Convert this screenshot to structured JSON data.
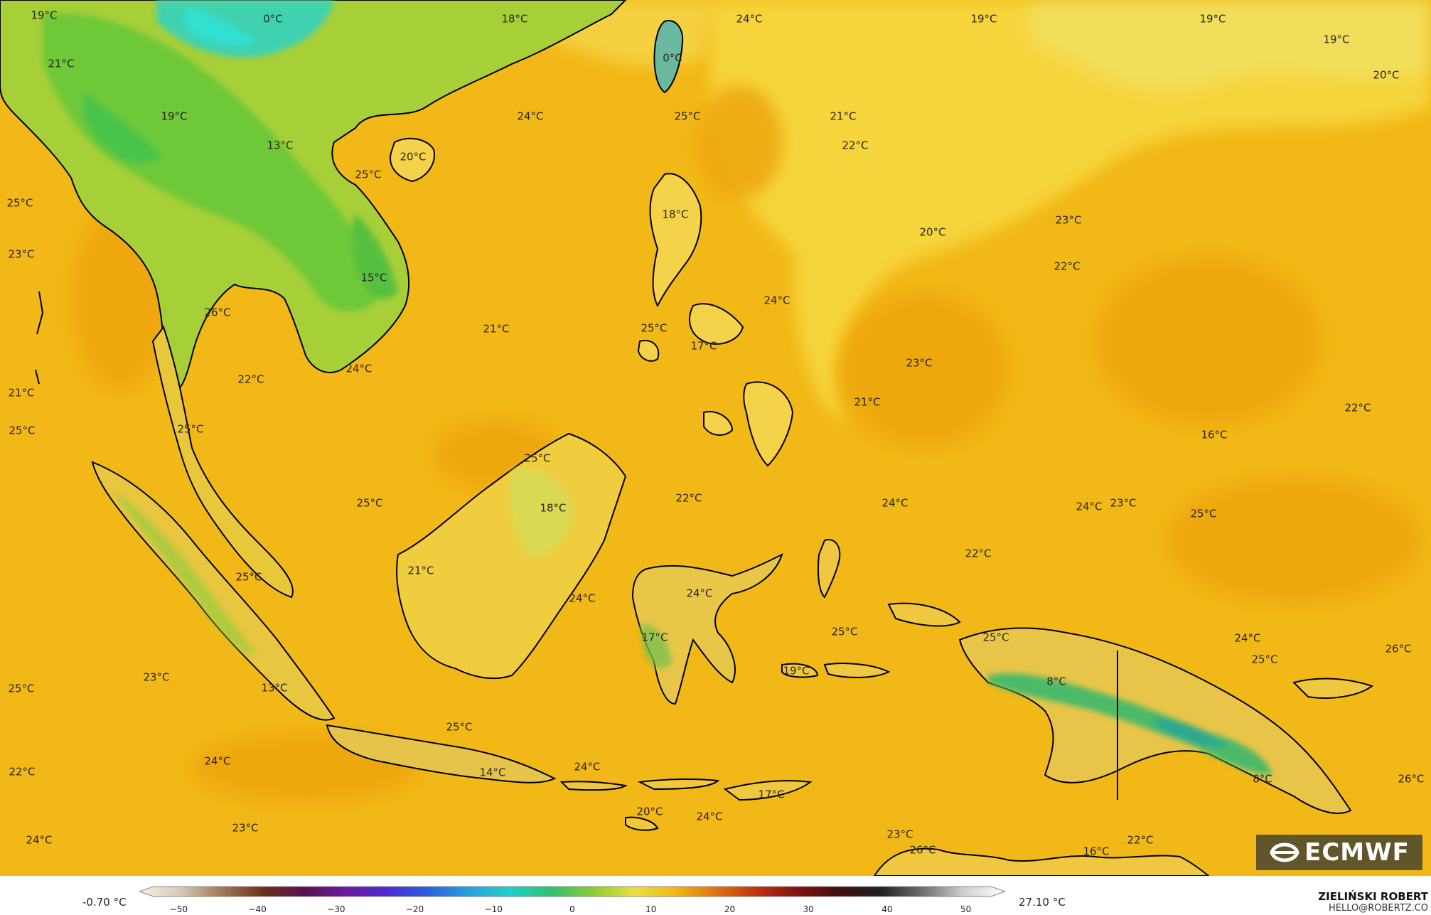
{
  "map": {
    "colors": {
      "ocean": "#f2b817",
      "warm_ocean": "#eea60f",
      "cool_ocean": "#f6d43a",
      "coastline": "#000000",
      "land_cool": "#8ccc30",
      "land_cold": "#3cbf70",
      "land_freezing": "#30d0c0"
    },
    "labels": [
      {
        "text": "19°C"
      },
      {
        "text": "0°C"
      },
      {
        "text": "18°C"
      },
      {
        "text": "24°C"
      },
      {
        "text": "19°C"
      },
      {
        "text": "19°C"
      },
      {
        "text": "19°C"
      },
      {
        "text": "20°C"
      },
      {
        "text": "21°C"
      },
      {
        "text": "0°C"
      },
      {
        "text": "19°C"
      },
      {
        "text": "24°C"
      },
      {
        "text": "25°C"
      },
      {
        "text": "21°C"
      },
      {
        "text": "13°C"
      },
      {
        "text": "22°C"
      },
      {
        "text": "20°C"
      },
      {
        "text": "25°C"
      },
      {
        "text": "25°C"
      },
      {
        "text": "18°C"
      },
      {
        "text": "23°C"
      },
      {
        "text": "20°C"
      },
      {
        "text": "23°C"
      },
      {
        "text": "22°C"
      },
      {
        "text": "15°C"
      },
      {
        "text": "24°C"
      },
      {
        "text": "26°C"
      },
      {
        "text": "21°C"
      },
      {
        "text": "25°C"
      },
      {
        "text": "17°C"
      },
      {
        "text": "24°C"
      },
      {
        "text": "22°C"
      },
      {
        "text": "23°C"
      },
      {
        "text": "21°C"
      },
      {
        "text": "21°C"
      },
      {
        "text": "22°C"
      },
      {
        "text": "25°C"
      },
      {
        "text": "25°C"
      },
      {
        "text": "25°C"
      },
      {
        "text": "16°C"
      },
      {
        "text": "25°C"
      },
      {
        "text": "18°C"
      },
      {
        "text": "22°C"
      },
      {
        "text": "24°C"
      },
      {
        "text": "24°C"
      },
      {
        "text": "23°C"
      },
      {
        "text": "25°C"
      },
      {
        "text": "21°C"
      },
      {
        "text": "22°C"
      },
      {
        "text": "25°C"
      },
      {
        "text": "24°C"
      },
      {
        "text": "24°C"
      },
      {
        "text": "17°C"
      },
      {
        "text": "25°C"
      },
      {
        "text": "25°C"
      },
      {
        "text": "24°C"
      },
      {
        "text": "26°C"
      },
      {
        "text": "25°C"
      },
      {
        "text": "19°C"
      },
      {
        "text": "8°C"
      },
      {
        "text": "23°C"
      },
      {
        "text": "13°C"
      },
      {
        "text": "25°C"
      },
      {
        "text": "25°C"
      },
      {
        "text": "24°C"
      },
      {
        "text": "14°C"
      },
      {
        "text": "24°C"
      },
      {
        "text": "22°C"
      },
      {
        "text": "17°C"
      },
      {
        "text": "20°C"
      },
      {
        "text": "24°C"
      },
      {
        "text": "8°C"
      },
      {
        "text": "26°C"
      },
      {
        "text": "24°C"
      },
      {
        "text": "23°C"
      },
      {
        "text": "23°C"
      },
      {
        "text": "26°C"
      },
      {
        "text": "16°C"
      },
      {
        "text": "22°C"
      }
    ]
  },
  "legend": {
    "min_label": "-0.70 °C",
    "max_label": "27.10 °C",
    "ticks": [
      "−50",
      "−40",
      "−30",
      "−20",
      "−10",
      "0",
      "10",
      "20",
      "30",
      "40",
      "50"
    ],
    "tick_values": [
      -50,
      -40,
      -30,
      -20,
      -10,
      0,
      10,
      20,
      30,
      40,
      50
    ],
    "range": [
      -55,
      55
    ],
    "colors": [
      "#f7f2e6",
      "#d8c9b4",
      "#a0785a",
      "#6a3018",
      "#5a1050",
      "#6a1aa0",
      "#4a2ad0",
      "#2a60e0",
      "#2aa0e0",
      "#20d0c8",
      "#30c070",
      "#8ccc30",
      "#e8e040",
      "#f2b817",
      "#e07010",
      "#c03010",
      "#801010",
      "#401010",
      "#202020",
      "#707070",
      "#d0d0d0",
      "#ffffff"
    ]
  },
  "logo": {
    "text": "ECMWF"
  },
  "author": {
    "name": "ZIELIŃSKI ROBERT",
    "email": "HELLO@ROBERTZ.CO"
  }
}
